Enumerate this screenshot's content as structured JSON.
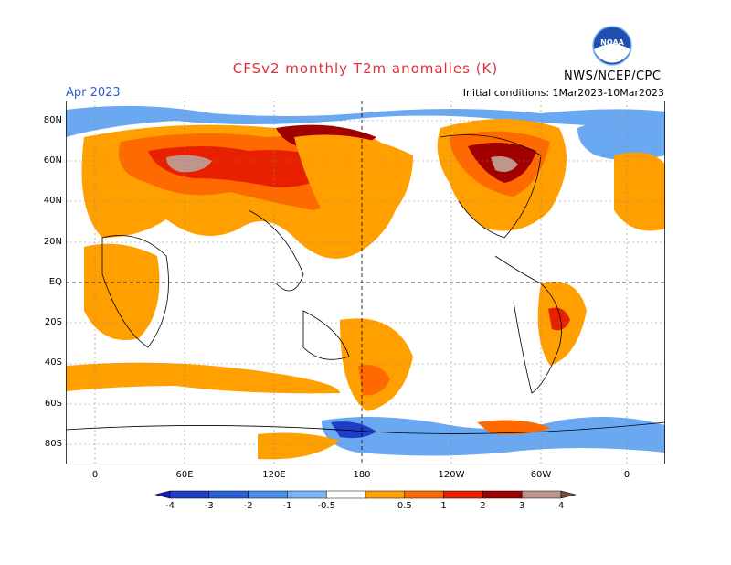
{
  "header": {
    "title": "CFSv2 monthly T2m anomalies (K)",
    "month": "Apr 2023",
    "initial_conditions": "Initial conditions: 1Mar2023-10Mar2023",
    "agency": "NWS/NCEP/CPC",
    "logo_text": "NOAA"
  },
  "map": {
    "lat_labels": [
      "80N",
      "60N",
      "40N",
      "20N",
      "EQ",
      "20S",
      "40S",
      "60S",
      "80S"
    ],
    "lon_labels": [
      "0",
      "60E",
      "120E",
      "180",
      "120W",
      "60W",
      "0"
    ]
  },
  "colorbar": {
    "labels": [
      "-4",
      "-3",
      "-2",
      "-1",
      "-0.5",
      "0.5",
      "1",
      "2",
      "3",
      "4"
    ],
    "colors": [
      "#1a1ab4",
      "#1e3ec8",
      "#2b62dc",
      "#4a8ef0",
      "#7ab4f8",
      "#ffffff",
      "#ffa000",
      "#ff6a00",
      "#e82000",
      "#a00000",
      "#c0968a",
      "#7a4a3a"
    ]
  },
  "legend_colors": {
    "neg_light": "#a6d2fa",
    "neg_mid": "#6aa8f2",
    "pos_1": "#ffa000",
    "pos_2": "#ff6a00",
    "pos_3": "#e82000",
    "pos_4": "#a00000",
    "pos_5": "#c0968a"
  }
}
